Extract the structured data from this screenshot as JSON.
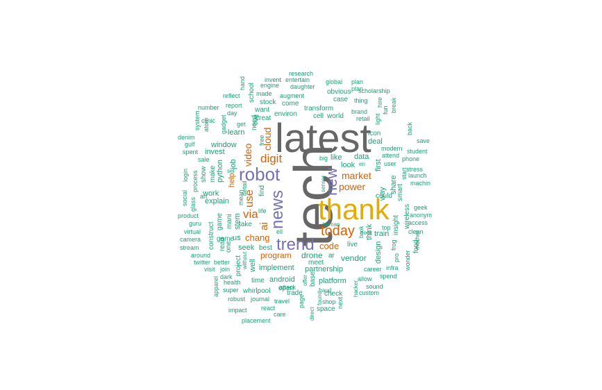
{
  "colors": {
    "tier1": "#666666",
    "tier2": "#E6AB02",
    "tier3": "#7570B3",
    "tier4": "#D95F02",
    "tier5": "#1B9E77"
  },
  "words": [
    "tech",
    "latest",
    "thank",
    "news",
    "robot",
    "new",
    "trend",
    "today",
    "via",
    "digit",
    "use",
    "video",
    "ai",
    "cloud",
    "market",
    "power",
    "code",
    "chang",
    "program",
    "drone",
    "vendor",
    "data",
    "like",
    "look",
    "learn",
    "window",
    "invest",
    "python",
    "job",
    "explain",
    "work",
    "seek",
    "implement",
    "partnership",
    "android",
    "platform",
    "whirlpool",
    "time",
    "stem",
    "take",
    "stock",
    "come",
    "environ",
    "transform",
    "cell",
    "world",
    "brand",
    "retail",
    "research",
    "entertain",
    "global",
    "plan",
    "invent",
    "engine",
    "daughter",
    "augment",
    "made",
    "obvious",
    "scholarship",
    "case",
    "thing",
    "report",
    "day",
    "number",
    "clinic",
    "gadget",
    "system",
    "atom",
    "denim",
    "gulf",
    "spent",
    "sale",
    "show",
    "make",
    "game",
    "mani",
    "read",
    "construct",
    "guru",
    "virtual",
    "camera",
    "stream",
    "around",
    "twitter",
    "better",
    "visit",
    "join",
    "apparel",
    "health",
    "super",
    "robust",
    "journal",
    "impact",
    "placement",
    "care",
    "react",
    "travel",
    "check",
    "shop",
    "space",
    "hacker",
    "custom",
    "sound",
    "spend",
    "career",
    "allow",
    "infra",
    "wonder",
    "frog",
    "mother",
    "clean",
    "access",
    "anonym",
    "geek",
    "machin",
    "launch",
    "stress",
    "phone",
    "student",
    "save",
    "back",
    "break",
    "fun",
    "hire",
    "light",
    "icon",
    "deal",
    "modern",
    "attend",
    "user",
    "start",
    "smart",
    "wireless",
    "insight",
    "food",
    "pro",
    "top",
    "design",
    "think",
    "train",
    "share",
    "way",
    "first",
    "find",
    "life",
    "help",
    "mean",
    "us",
    "one",
    "project",
    "well",
    "without",
    "dark",
    "best",
    "ell",
    "attack",
    "open",
    "meet",
    "trade",
    "offer",
    "page",
    "base",
    "direct",
    "found",
    "fraud",
    "ar",
    "live",
    "human",
    "sensor",
    "en",
    "big",
    "book",
    "could",
    "hook",
    "next",
    "game",
    "hand",
    "school",
    "reflect",
    "get",
    "plan",
    "set",
    "login",
    "social",
    "glass",
    "process",
    "product",
    "art",
    "detail",
    "free",
    "bug",
    "want",
    "creat",
    "need"
  ]
}
